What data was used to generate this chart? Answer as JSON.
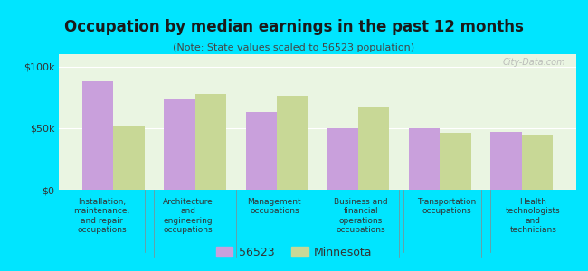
{
  "title": "Occupation by median earnings in the past 12 months",
  "subtitle": "(Note: State values scaled to 56523 population)",
  "categories": [
    "Installation,\nmaintenance,\nand repair\noccupations",
    "Architecture\nand\nengineering\noccupations",
    "Management\noccupations",
    "Business and\nfinancial\noperations\noccupations",
    "Transportation\noccupations",
    "Health\ntechnologists\nand\ntechnicians"
  ],
  "values_56523": [
    88000,
    73000,
    63000,
    50000,
    50000,
    47000
  ],
  "values_minnesota": [
    52000,
    78000,
    76000,
    67000,
    46000,
    45000
  ],
  "color_56523": "#c9a0dc",
  "color_minnesota": "#c8d896",
  "background_chart": "#eaf5e2",
  "background_fig": "#00e5ff",
  "ylim": [
    0,
    110000
  ],
  "yticks": [
    0,
    50000,
    100000
  ],
  "yticklabels": [
    "$0",
    "$50k",
    "$100k"
  ],
  "legend_label_56523": "56523",
  "legend_label_minnesota": "Minnesota",
  "watermark": "City-Data.com"
}
